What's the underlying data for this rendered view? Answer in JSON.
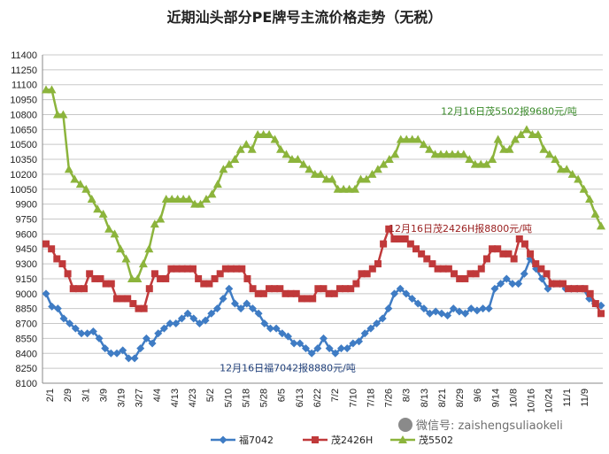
{
  "chart_data": {
    "type": "line",
    "title": "近期汕头部分PE牌号主流价格走势（无税）",
    "ylim": [
      8100,
      11400
    ],
    "y_ticks": [
      8100,
      8250,
      8400,
      8550,
      8700,
      8850,
      9000,
      9150,
      9300,
      9450,
      9600,
      9750,
      9900,
      10050,
      10200,
      10350,
      10500,
      10650,
      10800,
      10950,
      11100,
      11250,
      11400
    ],
    "x_tick_labels": [
      "2/1",
      "2/9",
      "3/1",
      "3/9",
      "3/19",
      "3/27",
      "4/4",
      "4/13",
      "4/23",
      "5/2",
      "5/10",
      "5/18",
      "5/28",
      "6/5",
      "6/13",
      "6/22",
      "7/2",
      "7/10",
      "7/18",
      "7/26",
      "8/3",
      "8/13",
      "8/21",
      "8/29",
      "9/6",
      "9/14",
      "10/8",
      "10/16",
      "10/24",
      "11/1",
      "11/9"
    ],
    "grid": "horizontal",
    "legend_position": "bottom",
    "series": [
      {
        "name": "福7042",
        "color": "#3f7cc4",
        "marker": "diamond",
        "values": [
          9000,
          8870,
          8850,
          8750,
          8700,
          8650,
          8600,
          8600,
          8620,
          8550,
          8450,
          8400,
          8400,
          8430,
          8350,
          8350,
          8450,
          8550,
          8500,
          8600,
          8650,
          8700,
          8700,
          8750,
          8800,
          8750,
          8700,
          8730,
          8800,
          8850,
          8950,
          9050,
          8900,
          8850,
          8900,
          8850,
          8800,
          8700,
          8650,
          8650,
          8600,
          8570,
          8500,
          8500,
          8450,
          8400,
          8450,
          8550,
          8450,
          8400,
          8450,
          8450,
          8500,
          8520,
          8600,
          8650,
          8700,
          8750,
          8850,
          9000,
          9050,
          9000,
          8950,
          8900,
          8850,
          8800,
          8820,
          8800,
          8780,
          8850,
          8820,
          8800,
          8850,
          8830,
          8850,
          8850,
          9050,
          9100,
          9150,
          9100,
          9100,
          9200,
          9350,
          9250,
          9150,
          9050,
          9100,
          9100,
          9050,
          9050,
          9050,
          9050,
          8950,
          8900,
          8880
        ]
      },
      {
        "name": "茂2426H",
        "color": "#c0393a",
        "marker": "square",
        "values": [
          9500,
          9450,
          9350,
          9300,
          9200,
          9050,
          9050,
          9050,
          9200,
          9150,
          9150,
          9100,
          9100,
          8950,
          8950,
          8950,
          8900,
          8850,
          8850,
          9050,
          9200,
          9150,
          9150,
          9250,
          9250,
          9250,
          9250,
          9250,
          9150,
          9100,
          9100,
          9150,
          9200,
          9250,
          9250,
          9250,
          9250,
          9150,
          9050,
          9000,
          9000,
          9050,
          9050,
          9050,
          9000,
          9000,
          9000,
          8950,
          8950,
          8950,
          9050,
          9050,
          9000,
          9000,
          9050,
          9050,
          9050,
          9100,
          9200,
          9200,
          9250,
          9300,
          9500,
          9650,
          9550,
          9550,
          9550,
          9500,
          9450,
          9400,
          9350,
          9300,
          9250,
          9250,
          9250,
          9200,
          9150,
          9150,
          9200,
          9200,
          9250,
          9350,
          9450,
          9450,
          9400,
          9400,
          9350,
          9550,
          9500,
          9400,
          9300,
          9250,
          9200,
          9100,
          9100,
          9100,
          9050,
          9050,
          9050,
          9050,
          9000,
          8900,
          8800
        ]
      },
      {
        "name": "茂5502",
        "color": "#8cb43c",
        "marker": "triangle",
        "values": [
          11050,
          11050,
          10800,
          10800,
          10250,
          10150,
          10100,
          10050,
          9950,
          9850,
          9800,
          9650,
          9600,
          9450,
          9350,
          9150,
          9150,
          9300,
          9450,
          9700,
          9750,
          9950,
          9950,
          9950,
          9950,
          9950,
          9900,
          9900,
          9950,
          10000,
          10100,
          10250,
          10300,
          10350,
          10450,
          10500,
          10450,
          10600,
          10600,
          10600,
          10550,
          10450,
          10400,
          10350,
          10350,
          10300,
          10250,
          10200,
          10200,
          10150,
          10150,
          10050,
          10050,
          10050,
          10050,
          10150,
          10150,
          10200,
          10250,
          10300,
          10350,
          10400,
          10550,
          10550,
          10550,
          10550,
          10500,
          10450,
          10400,
          10400,
          10400,
          10400,
          10400,
          10400,
          10350,
          10300,
          10300,
          10300,
          10350,
          10550,
          10450,
          10450,
          10550,
          10600,
          10650,
          10600,
          10600,
          10450,
          10400,
          10350,
          10250,
          10250,
          10200,
          10150,
          10050,
          9950,
          9800,
          9680
        ]
      }
    ],
    "annotations": [
      {
        "text": "12月16日茂5502报9680元/吨",
        "color": "#3a8a2a",
        "anchor_value": 10800
      },
      {
        "text": "12月16日茂2426H报8800元/吨",
        "color": "#9a2020",
        "anchor_value": 9620
      },
      {
        "text": "12月16日福7042报8880元/吨",
        "color": "#1f3f7a",
        "anchor_value": 8220
      }
    ]
  },
  "watermark": "微信号: zaishengsuliaokeli"
}
